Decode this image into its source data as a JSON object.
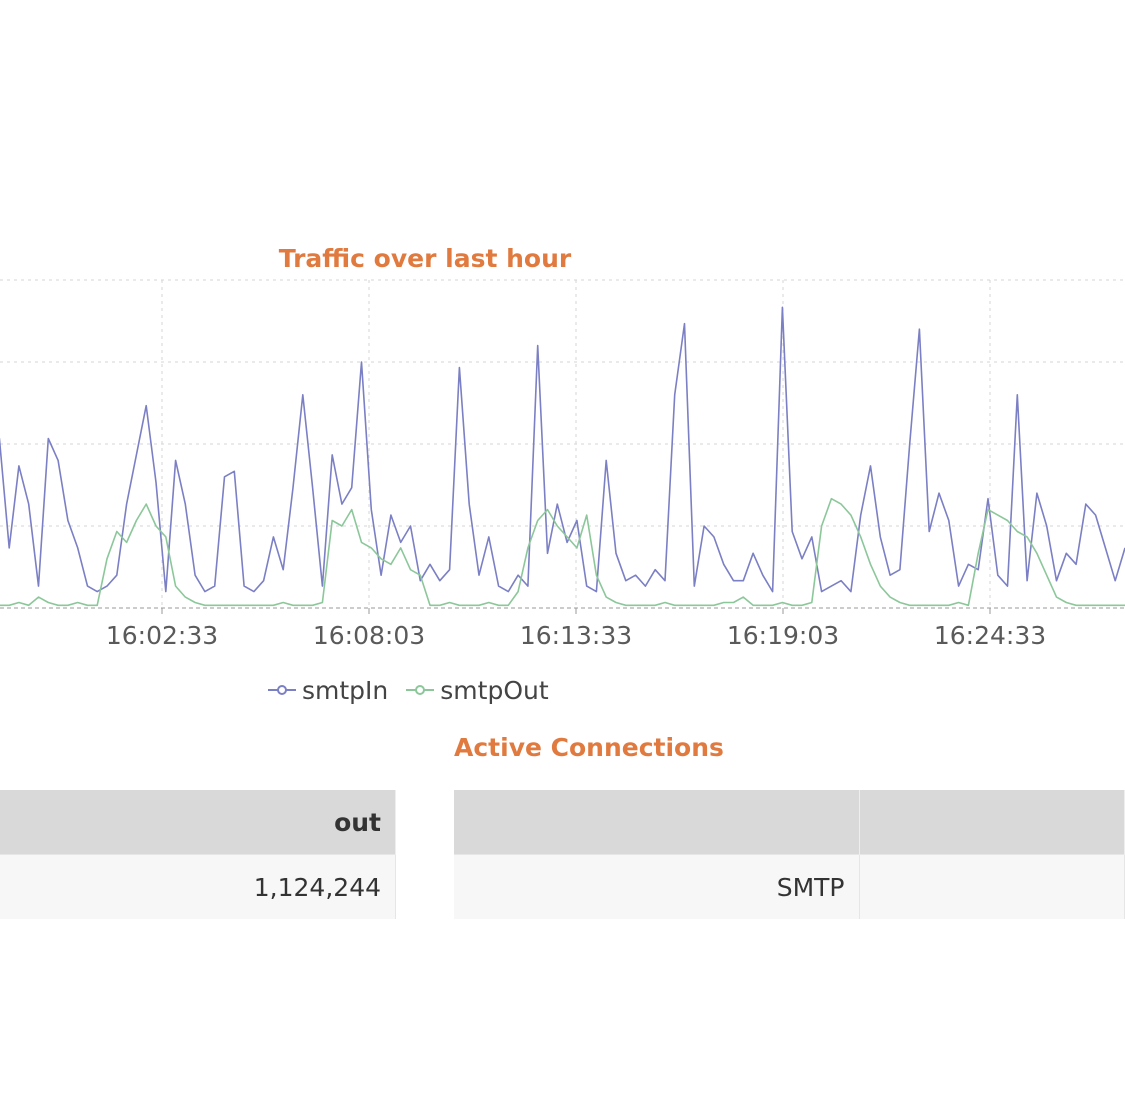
{
  "chart_data": {
    "type": "line",
    "title": "Traffic over last hour",
    "x_ticks": [
      "16:02:33",
      "16:08:03",
      "16:13:33",
      "16:19:03",
      "16:24:33"
    ],
    "series": [
      {
        "name": "smtpIn",
        "color": "#7b7fc4",
        "values": [
          2.6,
          0.3,
          1.3,
          3.1,
          1.1,
          2.6,
          1.9,
          0.4,
          3.1,
          2.7,
          1.6,
          1.1,
          0.4,
          0.3,
          0.4,
          0.6,
          1.9,
          2.8,
          3.7,
          2.3,
          0.3,
          2.7,
          1.9,
          0.6,
          0.3,
          0.4,
          2.4,
          2.5,
          0.4,
          0.3,
          0.5,
          1.3,
          0.7,
          2.2,
          3.9,
          2.2,
          0.4,
          2.8,
          1.9,
          2.2,
          4.5,
          1.8,
          0.6,
          1.7,
          1.2,
          1.5,
          0.5,
          0.8,
          0.5,
          0.7,
          4.4,
          1.9,
          0.6,
          1.3,
          0.4,
          0.3,
          0.6,
          0.4,
          4.8,
          1.0,
          1.9,
          1.2,
          1.6,
          0.4,
          0.3,
          2.7,
          1.0,
          0.5,
          0.6,
          0.4,
          0.7,
          0.5,
          3.9,
          5.2,
          0.4,
          1.5,
          1.3,
          0.8,
          0.5,
          0.5,
          1.0,
          0.6,
          0.3,
          5.5,
          1.4,
          0.9,
          1.3,
          0.3,
          0.4,
          0.5,
          0.3,
          1.7,
          2.6,
          1.3,
          0.6,
          0.7,
          3.0,
          5.1,
          1.4,
          2.1,
          1.6,
          0.4,
          0.8,
          0.7,
          2.0,
          0.6,
          0.4,
          3.9,
          0.5,
          2.1,
          1.5,
          0.5,
          1.0,
          0.8,
          1.9,
          1.7,
          1.1,
          0.5,
          1.1
        ],
        "ylim": [
          0,
          6
        ]
      },
      {
        "name": "smtpOut",
        "color": "#8cc79a",
        "values": [
          0.2,
          0.05,
          0.1,
          0.05,
          0.05,
          0.1,
          0.05,
          0.2,
          0.1,
          0.05,
          0.05,
          0.1,
          0.05,
          0.05,
          0.9,
          1.4,
          1.2,
          1.6,
          1.9,
          1.5,
          1.3,
          0.4,
          0.2,
          0.1,
          0.05,
          0.05,
          0.05,
          0.05,
          0.05,
          0.05,
          0.05,
          0.05,
          0.1,
          0.05,
          0.05,
          0.05,
          0.1,
          1.6,
          1.5,
          1.8,
          1.2,
          1.1,
          0.9,
          0.8,
          1.1,
          0.7,
          0.6,
          0.05,
          0.05,
          0.1,
          0.05,
          0.05,
          0.05,
          0.1,
          0.05,
          0.05,
          0.3,
          1.1,
          1.6,
          1.8,
          1.5,
          1.3,
          1.1,
          1.7,
          0.6,
          0.2,
          0.1,
          0.05,
          0.05,
          0.05,
          0.05,
          0.1,
          0.05,
          0.05,
          0.05,
          0.05,
          0.05,
          0.1,
          0.1,
          0.2,
          0.05,
          0.05,
          0.05,
          0.1,
          0.05,
          0.05,
          0.1,
          1.5,
          2.0,
          1.9,
          1.7,
          1.3,
          0.8,
          0.4,
          0.2,
          0.1,
          0.05,
          0.05,
          0.05,
          0.05,
          0.05,
          0.1,
          0.05,
          1.0,
          1.8,
          1.7,
          1.6,
          1.4,
          1.3,
          1.0,
          0.6,
          0.2,
          0.1,
          0.05,
          0.05,
          0.05,
          0.05,
          0.05,
          0.05
        ],
        "ylim": [
          0,
          6
        ]
      }
    ],
    "grid": true,
    "legend": "bottom-center"
  },
  "section": {
    "active_connections_title": "Active Connections"
  },
  "table_left": {
    "header": "out",
    "value": "1,124,244"
  },
  "table_right": {
    "header_1": "",
    "header_2": "",
    "row_label": "SMTP",
    "row_value": ""
  }
}
